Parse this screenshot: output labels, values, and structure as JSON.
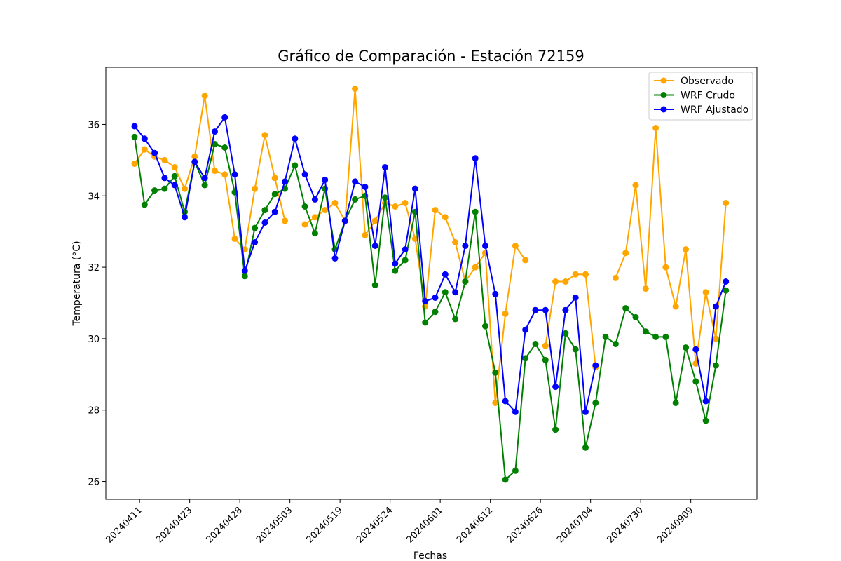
{
  "chart_data": {
    "type": "line",
    "title": "Gráfico de Comparación - Estación 72159",
    "xlabel": "Fechas",
    "ylabel": "Temperatura (°C)",
    "ylim": [
      25.5,
      37.6
    ],
    "y_ticks": [
      26,
      28,
      30,
      32,
      34,
      36
    ],
    "x_tick_labels": [
      "20240411",
      "20240423",
      "20240428",
      "20240503",
      "20240519",
      "20240524",
      "20240601",
      "20240612",
      "20240626",
      "20240704",
      "20240730",
      "20240909"
    ],
    "x_tick_positions": [
      0.5,
      5.5,
      10.5,
      15.5,
      20.5,
      25.5,
      30.5,
      35.5,
      40.5,
      45.5,
      50.5,
      55.5
    ],
    "x_count": 60,
    "legend_position": "upper right",
    "series": [
      {
        "name": "Observado",
        "color": "#FFA500",
        "values": [
          34.9,
          35.3,
          35.1,
          35.0,
          34.8,
          34.2,
          35.1,
          36.8,
          34.7,
          34.6,
          32.8,
          32.5,
          34.2,
          35.7,
          34.5,
          33.3,
          null,
          33.2,
          33.4,
          33.6,
          33.8,
          33.3,
          37.0,
          32.9,
          33.3,
          33.8,
          33.7,
          33.8,
          32.8,
          30.9,
          33.6,
          33.4,
          32.7,
          31.6,
          32.0,
          32.4,
          28.2,
          30.7,
          32.6,
          32.2,
          null,
          29.8,
          31.6,
          31.6,
          31.8,
          31.8,
          29.2,
          null,
          31.7,
          32.4,
          34.3,
          31.4,
          35.9,
          32.0,
          30.9,
          32.5,
          29.3,
          31.3,
          30.0,
          33.8
        ]
      },
      {
        "name": "WRF Crudo",
        "color": "#008000",
        "values": [
          35.65,
          33.75,
          34.15,
          34.2,
          34.55,
          33.55,
          34.95,
          34.3,
          35.45,
          35.35,
          34.1,
          31.75,
          33.1,
          33.6,
          34.05,
          34.2,
          34.85,
          33.7,
          32.95,
          34.2,
          32.5,
          33.3,
          33.9,
          34.0,
          31.5,
          33.95,
          31.9,
          32.2,
          33.55,
          30.45,
          30.75,
          31.3,
          30.55,
          31.6,
          33.55,
          30.35,
          29.05,
          26.05,
          26.3,
          29.45,
          29.85,
          29.4,
          27.45,
          30.15,
          29.7,
          26.95,
          28.2,
          30.05,
          29.85,
          30.85,
          30.6,
          30.2,
          30.05,
          30.05,
          28.2,
          29.75,
          28.8,
          27.7,
          29.25,
          31.35
        ]
      },
      {
        "name": "WRF Ajustado",
        "color": "#0000FF",
        "values": [
          35.95,
          35.6,
          35.2,
          34.5,
          34.3,
          33.4,
          34.95,
          34.5,
          35.8,
          36.2,
          34.6,
          31.9,
          32.7,
          33.25,
          33.55,
          34.4,
          35.6,
          34.6,
          33.9,
          34.45,
          32.25,
          33.3,
          34.4,
          34.25,
          32.6,
          34.8,
          32.1,
          32.5,
          34.2,
          31.05,
          31.15,
          31.8,
          31.3,
          32.6,
          35.05,
          32.6,
          31.25,
          28.25,
          27.95,
          30.25,
          30.8,
          30.8,
          28.65,
          30.8,
          31.15,
          27.95,
          29.25,
          null,
          null,
          null,
          null,
          null,
          null,
          null,
          null,
          null,
          29.7,
          28.25,
          30.9,
          31.6
        ]
      }
    ]
  }
}
